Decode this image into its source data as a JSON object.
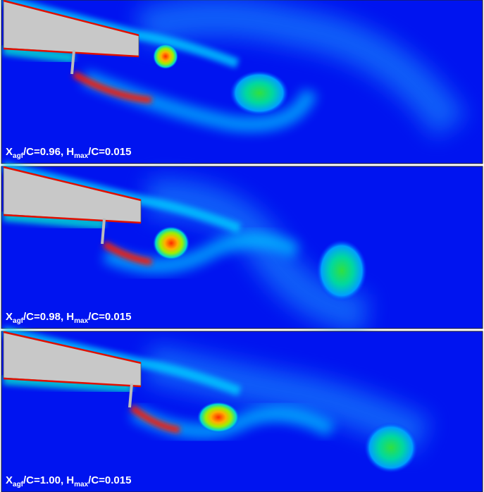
{
  "panels": [
    {
      "label": {
        "x": "X",
        "x_sub": "agf",
        "mid": "/C=0.96, H",
        "h_sub": "max",
        "tail": "/C=0.015"
      }
    },
    {
      "label": {
        "x": "X",
        "x_sub": "agf",
        "mid": "/C=0.98, H",
        "h_sub": "max",
        "tail": "/C=0.015"
      }
    },
    {
      "label": {
        "x": "X",
        "x_sub": "agf",
        "mid": "/C=1.00, H",
        "h_sub": "max",
        "tail": "/C=0.015"
      }
    }
  ]
}
